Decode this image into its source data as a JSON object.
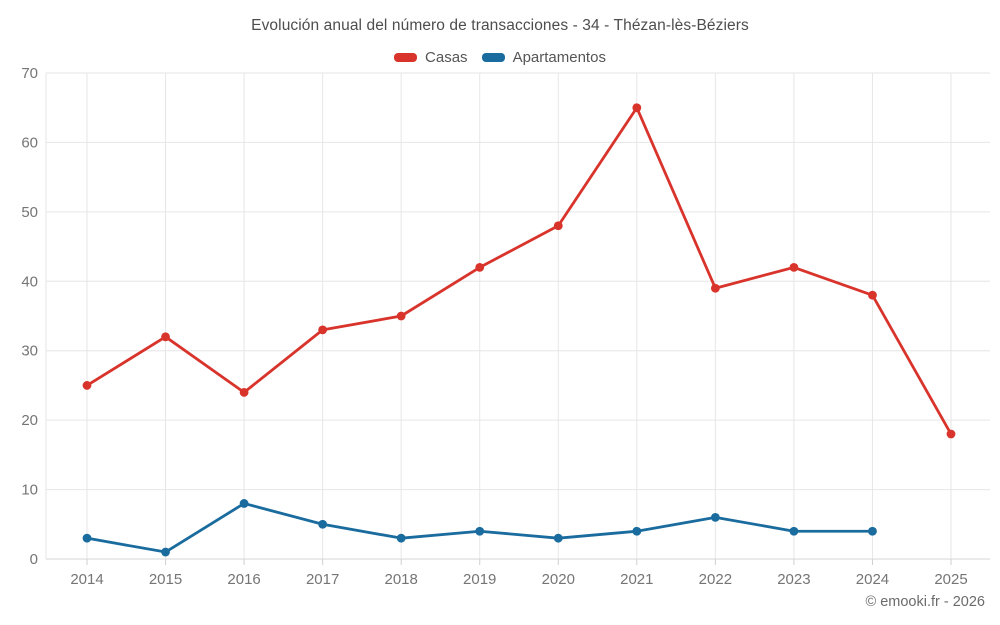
{
  "header": {
    "title": "Evolución anual del número de transacciones - 34 - Thézan-lès-Béziers"
  },
  "chart_data": {
    "type": "line",
    "title": "Evolución anual del número de transacciones - 34 - Thézan-lès-Béziers",
    "categories": [
      "2014",
      "2015",
      "2016",
      "2017",
      "2018",
      "2019",
      "2020",
      "2021",
      "2022",
      "2023",
      "2024",
      "2025"
    ],
    "series": [
      {
        "name": "Casas",
        "color": "#d8342c",
        "values": [
          25,
          32,
          24,
          33,
          35,
          42,
          48,
          65,
          39,
          42,
          38,
          18
        ]
      },
      {
        "name": "Apartamentos",
        "color": "#1a6b9e",
        "values": [
          3,
          1,
          8,
          5,
          3,
          4,
          3,
          4,
          6,
          4,
          4,
          null
        ]
      }
    ],
    "xlabel": "",
    "ylabel": "",
    "ylim": [
      0,
      70
    ],
    "yticks": [
      0,
      10,
      20,
      30,
      40,
      50,
      60,
      70
    ],
    "grid": true,
    "legend_position": "top"
  },
  "footer": {
    "attribution": "© emooki.fr - 2026"
  }
}
